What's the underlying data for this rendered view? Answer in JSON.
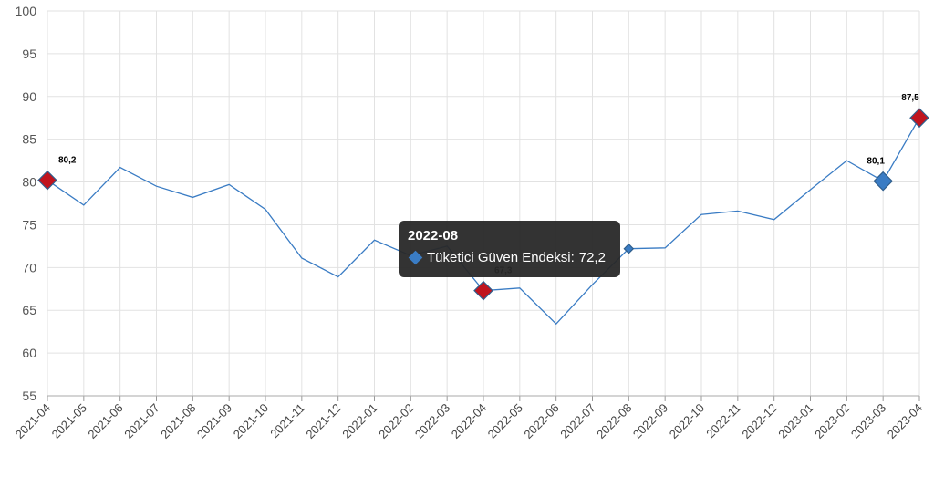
{
  "chart_data": {
    "type": "line",
    "title": "",
    "xlabel": "",
    "ylabel": "",
    "ylim": [
      55,
      100
    ],
    "yticks": [
      55,
      60,
      65,
      70,
      75,
      80,
      85,
      90,
      95,
      100
    ],
    "grid": true,
    "categories": [
      "2021-04",
      "2021-05",
      "2021-06",
      "2021-07",
      "2021-08",
      "2021-09",
      "2021-10",
      "2021-11",
      "2021-12",
      "2022-01",
      "2022-02",
      "2022-03",
      "2022-04",
      "2022-05",
      "2022-06",
      "2022-07",
      "2022-08",
      "2022-09",
      "2022-10",
      "2022-11",
      "2022-12",
      "2023-01",
      "2023-02",
      "2023-03",
      "2023-04"
    ],
    "series": [
      {
        "name": "Tüketici Güven Endeksi",
        "color": "#3a7cc4",
        "values": [
          80.2,
          77.3,
          81.7,
          79.5,
          78.2,
          79.7,
          76.8,
          71.1,
          68.9,
          73.2,
          71.4,
          72.5,
          67.3,
          67.6,
          63.4,
          68.0,
          72.2,
          72.3,
          76.2,
          76.6,
          75.6,
          79.1,
          82.5,
          80.1,
          87.5
        ]
      }
    ],
    "data_labels": [
      {
        "category": "2021-04",
        "text": "80,2",
        "marker_color": "#c0141e"
      },
      {
        "category": "2022-04",
        "text": "67,3",
        "marker_color": "#c0141e"
      },
      {
        "category": "2023-03",
        "text": "80,1",
        "marker_color": "#3a7cc4"
      },
      {
        "category": "2023-04",
        "text": "87,5",
        "marker_color": "#c0141e"
      }
    ],
    "highlight": {
      "category": "2022-08"
    },
    "tooltip": {
      "title": "2022-08",
      "series_name": "Tüketici Güven Endeksi",
      "separator": ":",
      "value": "72,2"
    }
  }
}
